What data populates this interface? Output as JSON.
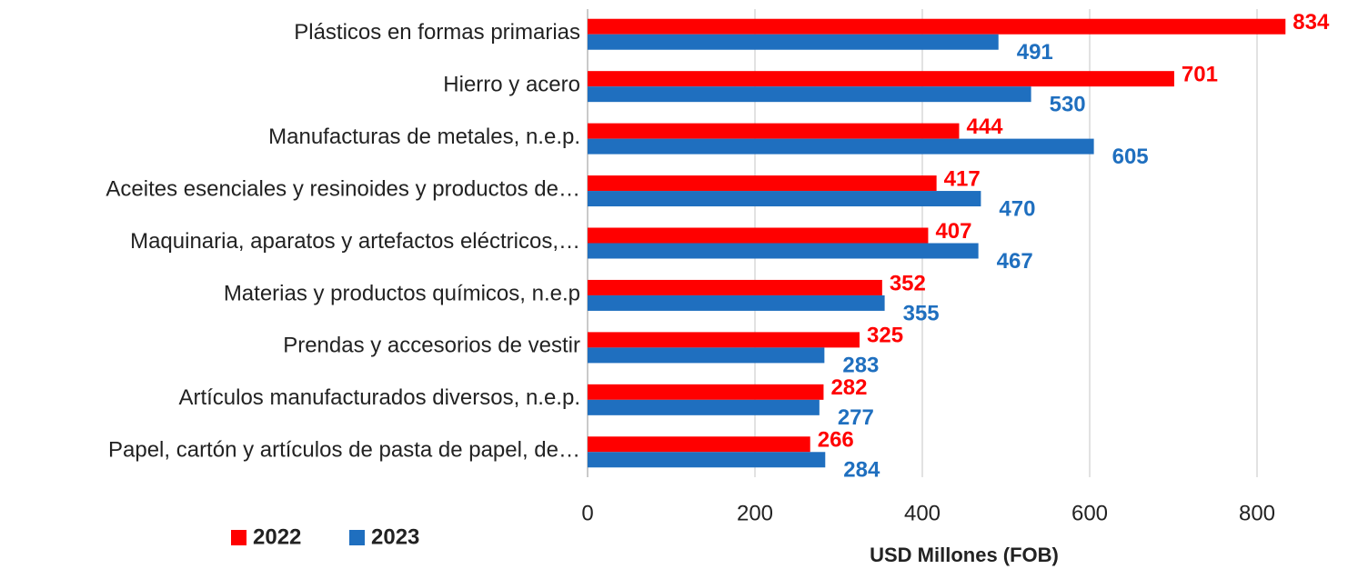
{
  "chart_data": {
    "type": "bar",
    "orientation": "horizontal",
    "x_axis_label": "USD Millones (FOB)",
    "categories": [
      "Plásticos en formas primarias",
      "Hierro y acero",
      "Manufacturas de metales, n.e.p.",
      "Aceites esenciales y resinoides y productos de…",
      "Maquinaria, aparatos y artefactos eléctricos,…",
      "Materias y productos químicos, n.e.p",
      "Prendas y accesorios de vestir",
      "Artículos manufacturados diversos, n.e.p.",
      "Papel, cartón y artículos de pasta de papel, de…"
    ],
    "series": [
      {
        "name": "2022",
        "color": "#ff0000",
        "values": [
          834,
          701,
          444,
          417,
          407,
          352,
          325,
          282,
          266
        ]
      },
      {
        "name": "2023",
        "color": "#1f6fbf",
        "values": [
          491,
          530,
          605,
          470,
          467,
          355,
          283,
          277,
          284
        ]
      }
    ],
    "xlim": [
      0,
      900
    ],
    "xticks": [
      0,
      200,
      400,
      600,
      800
    ],
    "grid": true,
    "legend": "bottom-left"
  }
}
